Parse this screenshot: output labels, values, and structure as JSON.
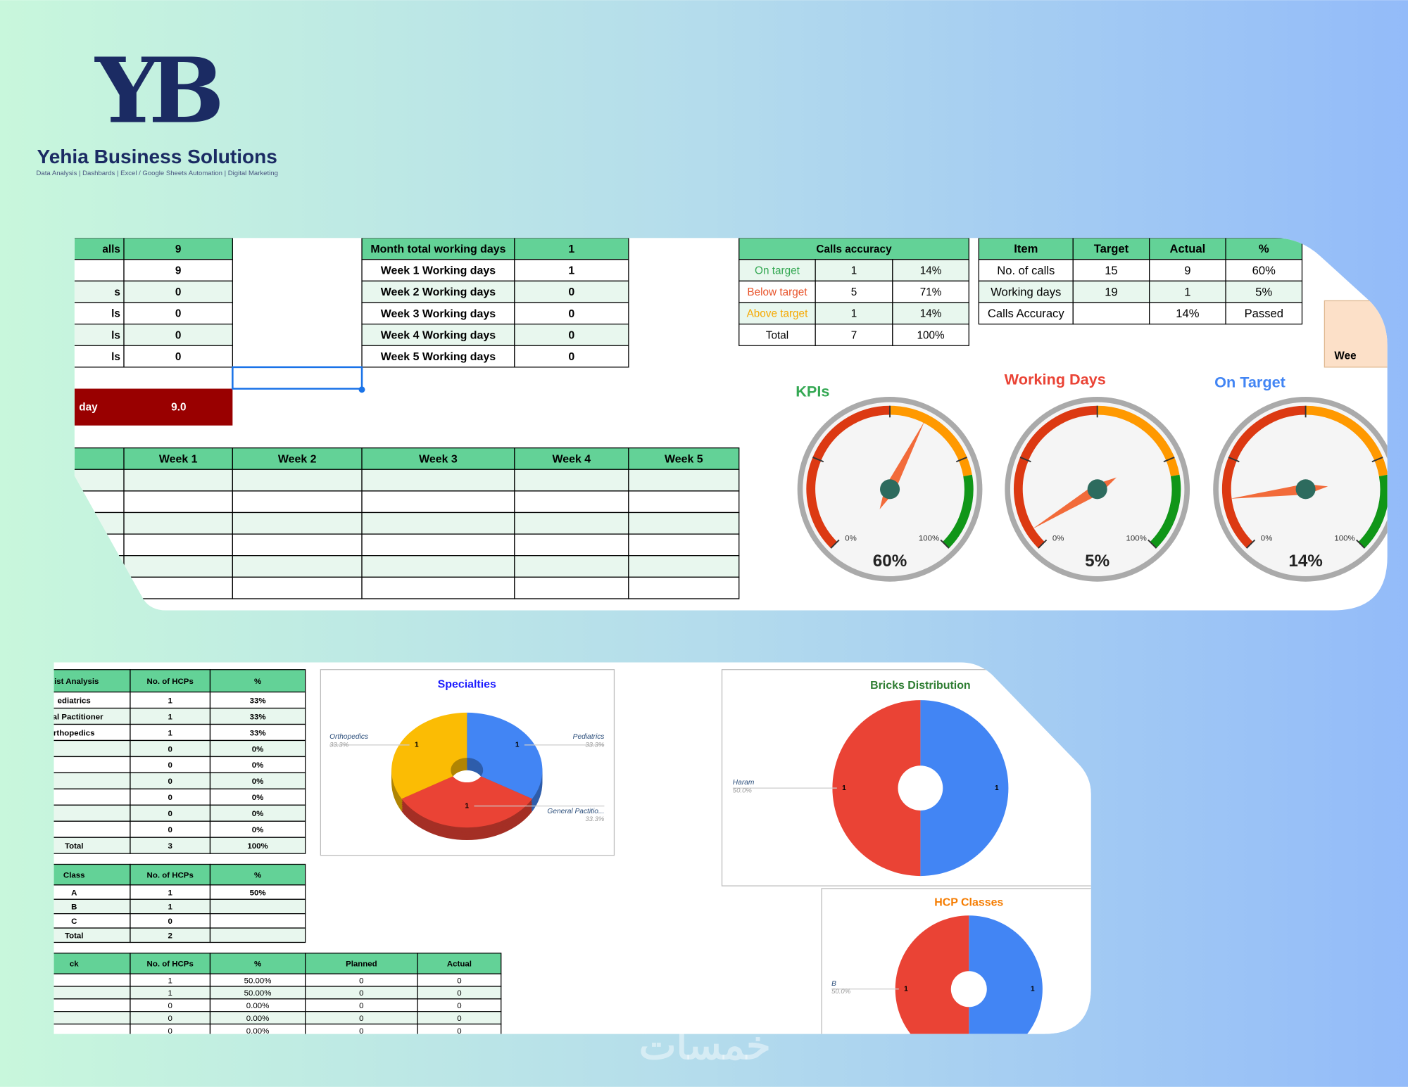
{
  "brand": {
    "logo": "YB",
    "name": "Yehia Business Solutions",
    "tagline": "Data Analysis | Dashbards | Excel / Google Sheets Automation | Digital Marketing"
  },
  "top": {
    "left_table": {
      "header": [
        "alls",
        "9"
      ],
      "rows": [
        [
          null,
          "9"
        ],
        [
          "s",
          "0"
        ],
        [
          "ls",
          "0"
        ],
        [
          "ls",
          "0"
        ],
        [
          "ls",
          "0"
        ]
      ]
    },
    "per_day": {
      "label": "day",
      "value": "9.0"
    },
    "working_days": {
      "header": [
        "Month total working days",
        "1"
      ],
      "rows": [
        [
          "Week 1 Working days",
          "1"
        ],
        [
          "Week 2 Working days",
          "0"
        ],
        [
          "Week 3 Working days",
          "0"
        ],
        [
          "Week 4 Working days",
          "0"
        ],
        [
          "Week 5 Working days",
          "0"
        ]
      ]
    },
    "weeks": {
      "header": [
        null,
        "Week 1",
        "Week 2",
        "Week 3",
        "Week 4",
        "Week 5"
      ]
    },
    "calls_accuracy": {
      "title": "Calls accuracy",
      "rows": [
        [
          "On target",
          "1",
          "14%"
        ],
        [
          "Below target",
          "5",
          "71%"
        ],
        [
          "Above target",
          "1",
          "14%"
        ],
        [
          "Total",
          "7",
          "100%"
        ]
      ],
      "label_colors": [
        "#34a853",
        "#e8532a",
        "#f6a800",
        "#000000"
      ]
    },
    "kpis": {
      "header": [
        "Item",
        "Target",
        "Actual",
        "%"
      ],
      "rows": [
        [
          "No. of calls",
          "15",
          "9",
          "60%"
        ],
        [
          "Working days",
          "19",
          "1",
          "5%"
        ],
        [
          "Calls Accuracy",
          null,
          "14%",
          "Passed"
        ]
      ]
    },
    "cut_label": "Wee",
    "gauge_min_label": "0%",
    "gauge_max_label": "100%",
    "gauges": [
      {
        "title": "KPIs",
        "title_color": "#34a853",
        "value": 60,
        "value_label": "60%"
      },
      {
        "title": "Working Days",
        "title_color": "#ea4335",
        "value": 5,
        "value_label": "5%"
      },
      {
        "title": "On Target",
        "title_color": "#4285f4",
        "value": 14,
        "value_label": "14%"
      }
    ]
  },
  "bottom": {
    "specialty_table": {
      "header": [
        "List Analysis",
        "No. of HCPs",
        "%"
      ],
      "rows": [
        [
          "ediatrics",
          "1",
          "33%"
        ],
        [
          "eral Pactitioner",
          "1",
          "33%"
        ],
        [
          "rthopedics",
          "1",
          "33%"
        ],
        [
          null,
          "0",
          "0%"
        ],
        [
          null,
          "0",
          "0%"
        ],
        [
          null,
          "0",
          "0%"
        ],
        [
          null,
          "0",
          "0%"
        ],
        [
          null,
          "0",
          "0%"
        ],
        [
          null,
          "0",
          "0%"
        ],
        [
          "Total",
          "3",
          "100%"
        ]
      ]
    },
    "class_table": {
      "header": [
        "Class",
        "No. of HCPs",
        "%"
      ],
      "rows": [
        [
          "A",
          "1",
          "50%"
        ],
        [
          "B",
          "1",
          null
        ],
        [
          "C",
          "0",
          null
        ],
        [
          "Total",
          "2",
          null
        ]
      ]
    },
    "brick_table": {
      "header": [
        "ck",
        "No. of HCPs",
        "%",
        "Planned",
        "Actual"
      ],
      "rows": [
        [
          null,
          "1",
          "50.00%",
          "0",
          "0"
        ],
        [
          null,
          "1",
          "50.00%",
          "0",
          "0"
        ],
        [
          null,
          "0",
          "0.00%",
          "0",
          "0"
        ],
        [
          null,
          "0",
          "0.00%",
          "0",
          "0"
        ],
        [
          null,
          "0",
          "0.00%",
          "0",
          "0"
        ]
      ]
    },
    "pies": [
      {
        "title": "Specialties",
        "title_color": "#1a1aff",
        "slices": [
          {
            "name": "Pediatrics",
            "value": 1,
            "pct": "33.3%",
            "color": "#4285f4"
          },
          {
            "name": "General Pactitio...",
            "value": 1,
            "pct": "33.3%",
            "color": "#ea4335"
          },
          {
            "name": "Orthopedics",
            "value": 1,
            "pct": "33.3%",
            "color": "#fbbc04"
          }
        ]
      },
      {
        "title": "Bricks Distribution",
        "title_color": "#2e7d32",
        "slices": [
          {
            "value": 1,
            "color": "#4285f4"
          },
          {
            "name": "Haram",
            "value": 1,
            "pct": "50.0%",
            "color": "#ea4335"
          }
        ]
      },
      {
        "title": "HCP Classes",
        "title_color": "#f57c00",
        "slices": [
          {
            "value": 1,
            "color": "#4285f4"
          },
          {
            "name": "B",
            "value": 1,
            "pct": "50.0%",
            "color": "#ea4335"
          }
        ]
      }
    ]
  },
  "watermark": "خمسات"
}
